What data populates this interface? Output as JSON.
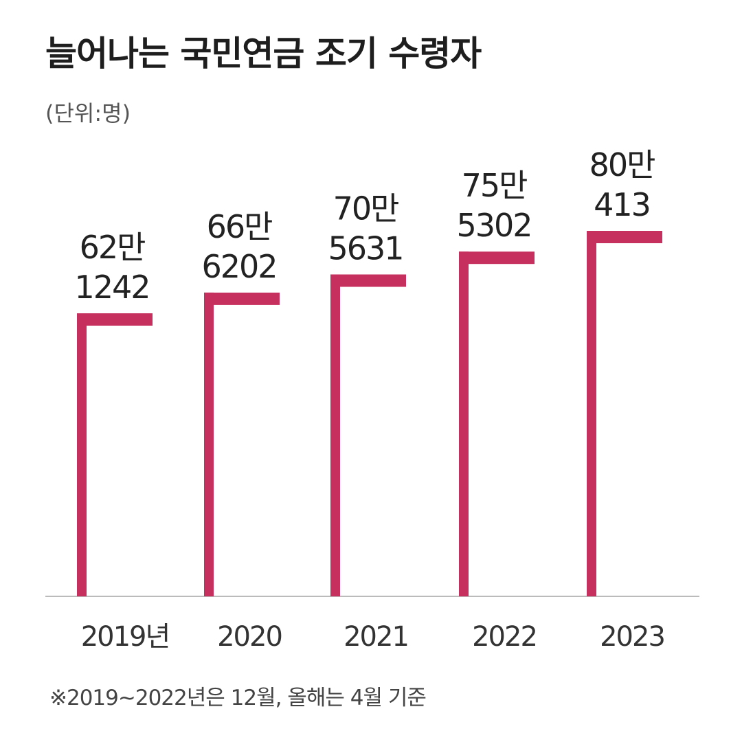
{
  "title": "늘어나는 국민연금 조기 수령자",
  "unit": "(단위:명)",
  "footnote": "※2019~2022년은 12월, 올해는 4월 기준",
  "colors": {
    "bar": "#c6305f",
    "axis": "#bbbbbb"
  },
  "chart_data": {
    "type": "bar",
    "categories": [
      "2019년",
      "2020",
      "2021",
      "2022",
      "2023"
    ],
    "values": [
      621242,
      666202,
      705631,
      755302,
      800413
    ],
    "value_labels": [
      [
        "62만",
        "1242"
      ],
      [
        "66만",
        "6202"
      ],
      [
        "70만",
        "5631"
      ],
      [
        "75만",
        "5302"
      ],
      [
        "80만",
        "413"
      ]
    ],
    "ylim": [
      0,
      1000000
    ]
  }
}
